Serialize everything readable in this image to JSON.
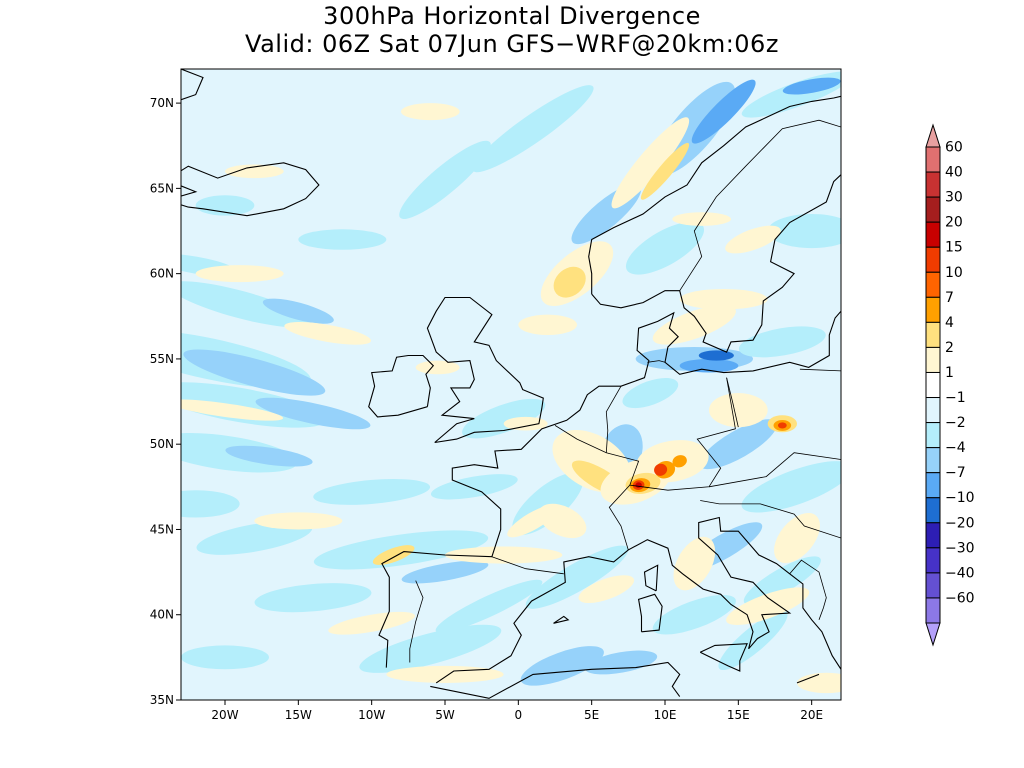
{
  "map": {
    "title_line1": "300hPa Horizontal Divergence",
    "title_line2": "Valid: 06Z Sat 07Jun GFS−WRF@20km:06z",
    "lon_range": [
      -23,
      22
    ],
    "lat_range": [
      35,
      72
    ],
    "lat_ticks": [
      {
        "value": 35,
        "label": "35N"
      },
      {
        "value": 40,
        "label": "40N"
      },
      {
        "value": 45,
        "label": "45N"
      },
      {
        "value": 50,
        "label": "50N"
      },
      {
        "value": 55,
        "label": "55N"
      },
      {
        "value": 60,
        "label": "60N"
      },
      {
        "value": 65,
        "label": "65N"
      },
      {
        "value": 70,
        "label": "70N"
      }
    ],
    "lon_ticks": [
      {
        "value": -20,
        "label": "20W"
      },
      {
        "value": -15,
        "label": "15W"
      },
      {
        "value": -10,
        "label": "10W"
      },
      {
        "value": -5,
        "label": "5W"
      },
      {
        "value": 0,
        "label": "0"
      },
      {
        "value": 5,
        "label": "5E"
      },
      {
        "value": 10,
        "label": "10E"
      },
      {
        "value": 15,
        "label": "15E"
      },
      {
        "value": 20,
        "label": "20E"
      }
    ],
    "colorbar": {
      "labels": [
        "60",
        "40",
        "30",
        "20",
        "15",
        "10",
        "7",
        "4",
        "2",
        "1",
        "−1",
        "−2",
        "−4",
        "−7",
        "−10",
        "−20",
        "−30",
        "−40",
        "−60"
      ],
      "colors": [
        "#e8a0a0",
        "#e07070",
        "#c83232",
        "#a51e1e",
        "#c80000",
        "#f03c00",
        "#ff6400",
        "#ffa000",
        "#ffe17f",
        "#fff6d2",
        "#ffffff",
        "#e1f5fd",
        "#b4eefb",
        "#96d2fa",
        "#5aaaf5",
        "#1e6ed2",
        "#2d1eb4",
        "#4632c8",
        "#6450d2",
        "#8c78e6",
        "#b4a0fa"
      ]
    },
    "field_colors": {
      "ocean_background": "#e1f5fd",
      "div_weak": "#fff6d2",
      "div_moderate": "#ffe17f",
      "div_strong": "#ffa000",
      "div_peak": "#f03c00",
      "div_core": "#c80000",
      "conv_weak": "#b4eefb",
      "conv_moderate": "#96d2fa",
      "conv_strong": "#5aaaf5",
      "conv_peak": "#1e6ed2"
    }
  }
}
